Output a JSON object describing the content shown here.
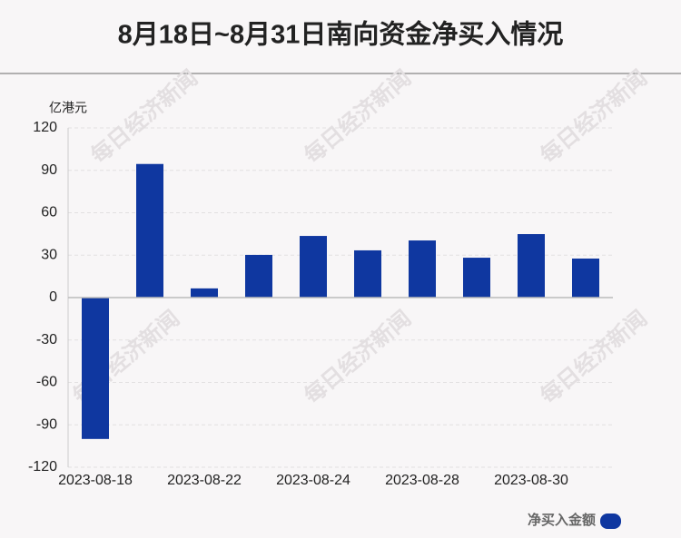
{
  "chart_data": {
    "type": "bar",
    "title": "8月18日~8月31日南向资金净买入情况",
    "y_unit": "亿港元",
    "watermark": "每日经济新闻",
    "categories": [
      "2023-08-18",
      null,
      "2023-08-22",
      null,
      "2023-08-24",
      null,
      "2023-08-28",
      null,
      "2023-08-30",
      null
    ],
    "series": [
      {
        "name": "净买入金额",
        "color": "#0f37a0",
        "values": [
          -100,
          94.5,
          6.5,
          30.2,
          43.6,
          33.4,
          40.4,
          28.2,
          44.9,
          27.6
        ]
      }
    ],
    "ylim": [
      -120,
      120
    ],
    "yticks": [
      -120,
      -90,
      -60,
      -30,
      0,
      30,
      60,
      90,
      120
    ],
    "grid": true,
    "legend": "bottom-right"
  }
}
